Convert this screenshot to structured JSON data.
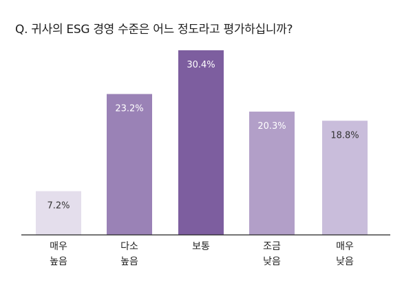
{
  "chart_data": {
    "type": "bar",
    "title": "Q. 귀사의 ESG 경영 수준은 어느 정도라고 평가하십니까?",
    "categories": [
      [
        "매우",
        "높음"
      ],
      [
        "다소",
        "높음"
      ],
      [
        "보통"
      ],
      [
        "조금",
        "낮음"
      ],
      [
        "매우",
        "낮음"
      ]
    ],
    "values": [
      7.2,
      23.2,
      30.4,
      20.3,
      18.8
    ],
    "value_labels": [
      "7.2%",
      "23.2%",
      "30.4%",
      "20.3%",
      "18.8%"
    ],
    "unit": "%",
    "ylim": [
      0,
      30.4
    ],
    "grid": false,
    "legend": "none",
    "bar_colors": [
      "#e4deec",
      "#9a82b6",
      "#7d5e9f",
      "#b29fc8",
      "#c9bddb"
    ],
    "value_label_colors": [
      "#333333",
      "#ffffff",
      "#ffffff",
      "#ffffff",
      "#333333"
    ],
    "axis_color": "#222222"
  }
}
